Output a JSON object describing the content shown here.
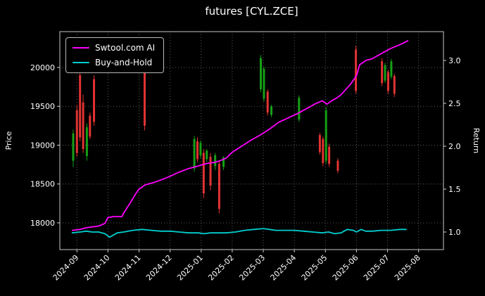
{
  "title": "futures [CYL.ZCE]",
  "legend": {
    "items": [
      {
        "label": "Swtool.com AI",
        "color": "#ff00ff"
      },
      {
        "label": "Buy-and-Hold",
        "color": "#00cfcf"
      }
    ]
  },
  "chart_data": {
    "type": "line",
    "subtype": "line-with-candlesticks",
    "title": "futures [CYL.ZCE]",
    "background": "#000000",
    "text_color": "#ffffff",
    "grid": true,
    "legend_position": "upper-left",
    "x_axis": {
      "tick_labels": [
        "2024-09",
        "2024-10",
        "2024-11",
        "2024-12",
        "2025-01",
        "2025-02",
        "2025-03",
        "2025-04",
        "2025-05",
        "2025-06",
        "2025-07",
        "2025-08"
      ],
      "range": [
        -0.55,
        11.8
      ]
    },
    "left_axis": {
      "label": "Price",
      "ticks": [
        18000,
        18500,
        19000,
        19500,
        20000
      ],
      "range": [
        17656,
        20461
      ]
    },
    "right_axis": {
      "label": "Return",
      "ticks": [
        "1.0",
        "1.5",
        "2.0",
        "2.5",
        "3.0"
      ],
      "range": [
        0.795,
        3.336
      ]
    },
    "series": [
      {
        "name": "Swtool.com AI",
        "type": "line",
        "axis": "right",
        "color": "#ff00ff",
        "x": [
          -0.15,
          0.1,
          0.3,
          0.5,
          0.7,
          0.9,
          1.0,
          1.2,
          1.45,
          1.5,
          1.7,
          1.9,
          2.0,
          2.2,
          2.5,
          2.8,
          3.0,
          3.3,
          3.6,
          3.9,
          4.0,
          4.2,
          4.4,
          4.6,
          4.8,
          5.0,
          5.3,
          5.6,
          5.9,
          6.2,
          6.5,
          6.8,
          7.1,
          7.4,
          7.7,
          7.9,
          8.05,
          8.2,
          8.35,
          8.5,
          8.8,
          9.0,
          9.1,
          9.3,
          9.5,
          9.8,
          10.1,
          10.3,
          10.5,
          10.65
        ],
        "y": [
          1.02,
          1.03,
          1.05,
          1.06,
          1.07,
          1.1,
          1.17,
          1.18,
          1.18,
          1.22,
          1.33,
          1.45,
          1.5,
          1.55,
          1.58,
          1.62,
          1.65,
          1.7,
          1.74,
          1.77,
          1.78,
          1.8,
          1.81,
          1.83,
          1.86,
          1.93,
          2.0,
          2.07,
          2.13,
          2.2,
          2.28,
          2.33,
          2.38,
          2.44,
          2.5,
          2.53,
          2.49,
          2.53,
          2.56,
          2.6,
          2.72,
          2.82,
          2.95,
          3.0,
          3.02,
          3.08,
          3.14,
          3.17,
          3.2,
          3.23
        ]
      },
      {
        "name": "Buy-and-Hold",
        "type": "line",
        "axis": "right",
        "color": "#00cfcf",
        "x": [
          -0.15,
          0.1,
          0.3,
          0.5,
          0.7,
          0.9,
          1.05,
          1.15,
          1.3,
          1.5,
          1.8,
          2.1,
          2.4,
          2.7,
          3.0,
          3.3,
          3.6,
          3.9,
          4.1,
          4.3,
          4.5,
          4.8,
          5.1,
          5.4,
          5.7,
          6.0,
          6.2,
          6.4,
          6.7,
          7.0,
          7.3,
          7.6,
          7.9,
          8.1,
          8.3,
          8.5,
          8.7,
          8.9,
          9.0,
          9.15,
          9.3,
          9.5,
          9.8,
          10.1,
          10.4,
          10.6
        ],
        "y": [
          0.99,
          1.0,
          1.01,
          1.0,
          1.0,
          0.98,
          0.94,
          0.96,
          0.99,
          1.0,
          1.02,
          1.03,
          1.02,
          1.01,
          1.01,
          1.0,
          0.99,
          0.99,
          0.98,
          0.99,
          0.99,
          0.99,
          1.0,
          1.02,
          1.03,
          1.04,
          1.03,
          1.02,
          1.02,
          1.02,
          1.01,
          1.0,
          0.99,
          1.0,
          0.98,
          0.99,
          1.03,
          1.02,
          1.0,
          1.03,
          1.01,
          1.01,
          1.02,
          1.02,
          1.03,
          1.03
        ]
      }
    ],
    "candles": {
      "axis": "left",
      "up_color": "#16a016",
      "down_color": "#e23333",
      "ohlc_note": "[t_months_since_2024_09, open, high, low, close]",
      "ohlc": [
        [
          -0.12,
          18800,
          19200,
          18720,
          19150
        ],
        [
          0.0,
          19450,
          19520,
          18850,
          18900
        ],
        [
          0.1,
          19900,
          19980,
          19050,
          19100
        ],
        [
          0.2,
          19550,
          19650,
          18900,
          18950
        ],
        [
          0.32,
          18860,
          19280,
          18800,
          19230
        ],
        [
          0.42,
          19380,
          19420,
          19080,
          19110
        ],
        [
          0.55,
          19850,
          19900,
          19250,
          19300
        ],
        [
          2.18,
          20000,
          20060,
          19190,
          19250
        ],
        [
          3.78,
          18700,
          19120,
          18660,
          19080
        ],
        [
          3.88,
          19050,
          19100,
          18780,
          18820
        ],
        [
          3.98,
          18870,
          19060,
          18830,
          19030
        ],
        [
          4.08,
          18900,
          18950,
          18320,
          18380
        ],
        [
          4.18,
          18820,
          18950,
          18780,
          18930
        ],
        [
          4.3,
          18850,
          18900,
          18420,
          18480
        ],
        [
          4.45,
          18730,
          18900,
          18680,
          18870
        ],
        [
          4.58,
          18760,
          18800,
          18120,
          18180
        ],
        [
          4.72,
          18720,
          18860,
          18680,
          18840
        ],
        [
          5.92,
          19720,
          20160,
          19680,
          20120
        ],
        [
          6.02,
          19600,
          20010,
          19560,
          19980
        ],
        [
          6.14,
          19690,
          19720,
          19380,
          19420
        ],
        [
          6.26,
          19390,
          19520,
          19360,
          19500
        ],
        [
          7.15,
          19330,
          19640,
          19300,
          19610
        ],
        [
          7.82,
          19130,
          19160,
          18880,
          18910
        ],
        [
          7.92,
          19080,
          19110,
          18730,
          18770
        ],
        [
          8.02,
          18800,
          19490,
          18760,
          19450
        ],
        [
          8.12,
          18980,
          19020,
          18720,
          18760
        ],
        [
          8.4,
          18800,
          18830,
          18640,
          18670
        ],
        [
          8.98,
          20230,
          20280,
          19660,
          19700
        ],
        [
          9.82,
          20080,
          20120,
          19760,
          19800
        ],
        [
          9.92,
          19830,
          20060,
          19800,
          20030
        ],
        [
          10.02,
          19940,
          19970,
          19660,
          19700
        ],
        [
          10.12,
          19880,
          20110,
          19850,
          20080
        ],
        [
          10.22,
          19890,
          19920,
          19620,
          19660
        ]
      ]
    }
  }
}
